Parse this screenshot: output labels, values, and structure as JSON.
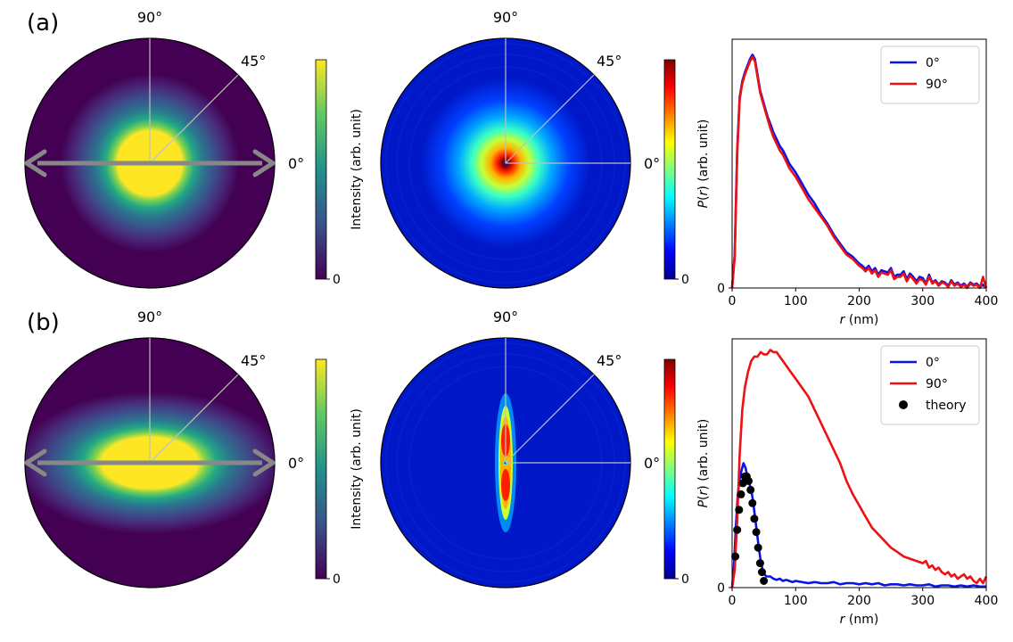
{
  "colors": {
    "blue": "#0a14e6",
    "red": "#ee1111",
    "arrow": "#888888",
    "guide": "#bfbfbf",
    "black": "#000000"
  },
  "rows": [
    {
      "panel_label": "(a)",
      "shape": "isotropic",
      "viridis_map": {
        "angle_labels": [
          "90°",
          "45°",
          "0°"
        ],
        "colorbar": {
          "ylabel": "Intensity (arb. unit)",
          "tick_label": "0"
        }
      },
      "jet_map": {
        "angle_labels": [
          "90°",
          "45°",
          "0°"
        ],
        "colorbar": {
          "tick_label": "0"
        }
      }
    },
    {
      "panel_label": "(b)",
      "shape": "anisotropic",
      "viridis_map": {
        "angle_labels": [
          "90°",
          "45°",
          "0°"
        ],
        "colorbar": {
          "ylabel": "Intensity (arb. unit)",
          "tick_label": "0"
        }
      },
      "jet_map": {
        "angle_labels": [
          "90°",
          "45°",
          "0°"
        ],
        "colorbar": {
          "tick_label": "0"
        }
      }
    }
  ],
  "chart_data": [
    {
      "type": "line",
      "title": "",
      "xlabel_italic": "r",
      "xlabel_rest": " (nm)",
      "ylabel_italic": "P",
      "ylabel_rest": "(",
      "ylabel_italic2": "r",
      "ylabel_rest2": ") (arb. unit)",
      "xlim": [
        0,
        400
      ],
      "ylim": [
        0,
        1.12
      ],
      "x_ticks": [
        0,
        100,
        200,
        300,
        400
      ],
      "x_tick_labels": [
        "0",
        "100",
        "200",
        "300",
        "400"
      ],
      "y_ticks": [
        0
      ],
      "y_tick_labels": [
        "0"
      ],
      "legend_position": "top-right",
      "series": [
        {
          "name": "0°",
          "style": "line",
          "color": "#0a14e6",
          "x": [
            0,
            4,
            8,
            12,
            16,
            20,
            24,
            28,
            32,
            36,
            40,
            44,
            48,
            52,
            56,
            60,
            65,
            70,
            75,
            80,
            85,
            90,
            95,
            100,
            110,
            120,
            130,
            140,
            150,
            160,
            170,
            180,
            190,
            200,
            205,
            210,
            215,
            220,
            225,
            230,
            235,
            240,
            245,
            250,
            255,
            260,
            265,
            270,
            275,
            280,
            285,
            290,
            295,
            300,
            305,
            310,
            315,
            320,
            325,
            330,
            335,
            340,
            345,
            350,
            355,
            360,
            365,
            370,
            375,
            380,
            385,
            390,
            395,
            400
          ],
          "y": [
            0,
            0.15,
            0.62,
            0.86,
            0.93,
            0.97,
            1.0,
            1.03,
            1.05,
            1.03,
            0.96,
            0.89,
            0.85,
            0.81,
            0.77,
            0.74,
            0.7,
            0.67,
            0.64,
            0.62,
            0.59,
            0.56,
            0.54,
            0.52,
            0.47,
            0.42,
            0.38,
            0.33,
            0.29,
            0.24,
            0.2,
            0.16,
            0.14,
            0.11,
            0.1,
            0.085,
            0.1,
            0.075,
            0.09,
            0.06,
            0.08,
            0.075,
            0.07,
            0.09,
            0.05,
            0.06,
            0.06,
            0.075,
            0.04,
            0.065,
            0.05,
            0.03,
            0.05,
            0.045,
            0.02,
            0.06,
            0.025,
            0.035,
            0.015,
            0.03,
            0.025,
            0.01,
            0.035,
            0.015,
            0.025,
            0.01,
            0.02,
            0.005,
            0.025,
            0.015,
            0.02,
            0.005,
            0.015,
            0.0
          ]
        },
        {
          "name": "90°",
          "style": "line",
          "color": "#ee1111",
          "x": [
            0,
            4,
            8,
            12,
            16,
            20,
            24,
            28,
            32,
            36,
            40,
            44,
            48,
            52,
            56,
            60,
            65,
            70,
            75,
            80,
            85,
            90,
            95,
            100,
            110,
            120,
            130,
            140,
            150,
            160,
            170,
            180,
            190,
            200,
            205,
            210,
            215,
            220,
            225,
            230,
            235,
            240,
            245,
            250,
            255,
            260,
            265,
            270,
            275,
            280,
            285,
            290,
            295,
            300,
            305,
            310,
            315,
            320,
            325,
            330,
            335,
            340,
            345,
            350,
            355,
            360,
            365,
            370,
            375,
            380,
            385,
            390,
            395,
            400
          ],
          "y": [
            0,
            0.14,
            0.6,
            0.85,
            0.92,
            0.96,
            0.99,
            1.02,
            1.04,
            1.02,
            0.95,
            0.88,
            0.84,
            0.8,
            0.76,
            0.72,
            0.68,
            0.65,
            0.62,
            0.6,
            0.57,
            0.54,
            0.52,
            0.5,
            0.45,
            0.4,
            0.36,
            0.32,
            0.28,
            0.23,
            0.19,
            0.15,
            0.13,
            0.1,
            0.09,
            0.075,
            0.09,
            0.065,
            0.08,
            0.05,
            0.07,
            0.065,
            0.06,
            0.08,
            0.04,
            0.05,
            0.05,
            0.065,
            0.03,
            0.055,
            0.04,
            0.02,
            0.04,
            0.035,
            0.015,
            0.05,
            0.02,
            0.03,
            0.01,
            0.025,
            0.02,
            0.005,
            0.03,
            0.01,
            0.02,
            0.005,
            0.015,
            0.0,
            0.02,
            0.01,
            0.015,
            0.0,
            0.05,
            0.0
          ]
        }
      ]
    },
    {
      "type": "line",
      "title": "",
      "xlabel_italic": "r",
      "xlabel_rest": " (nm)",
      "ylabel_italic": "P",
      "ylabel_rest": "(",
      "ylabel_italic2": "r",
      "ylabel_rest2": ") (arb. unit)",
      "xlim": [
        0,
        400
      ],
      "ylim": [
        0,
        1.12
      ],
      "x_ticks": [
        0,
        100,
        200,
        300,
        400
      ],
      "x_tick_labels": [
        "0",
        "100",
        "200",
        "300",
        "400"
      ],
      "y_ticks": [
        0
      ],
      "y_tick_labels": [
        "0"
      ],
      "legend_position": "top-right",
      "series": [
        {
          "name": "0°",
          "style": "line",
          "color": "#0a14e6",
          "x": [
            0,
            3,
            6,
            9,
            12,
            15,
            18,
            21,
            24,
            27,
            30,
            33,
            36,
            39,
            42,
            45,
            48,
            51,
            54,
            57,
            60,
            65,
            70,
            75,
            80,
            85,
            90,
            95,
            100,
            110,
            120,
            130,
            140,
            150,
            160,
            170,
            180,
            190,
            200,
            210,
            220,
            230,
            240,
            250,
            260,
            270,
            280,
            290,
            300,
            310,
            320,
            330,
            340,
            350,
            360,
            370,
            380,
            390,
            400
          ],
          "y": [
            0,
            0.1,
            0.28,
            0.42,
            0.49,
            0.53,
            0.56,
            0.54,
            0.5,
            0.47,
            0.44,
            0.39,
            0.32,
            0.25,
            0.18,
            0.12,
            0.08,
            0.06,
            0.05,
            0.05,
            0.05,
            0.04,
            0.035,
            0.04,
            0.03,
            0.035,
            0.03,
            0.025,
            0.03,
            0.025,
            0.02,
            0.025,
            0.02,
            0.02,
            0.025,
            0.015,
            0.02,
            0.02,
            0.015,
            0.02,
            0.015,
            0.02,
            0.01,
            0.015,
            0.015,
            0.01,
            0.015,
            0.01,
            0.01,
            0.015,
            0.005,
            0.01,
            0.01,
            0.005,
            0.01,
            0.005,
            0.01,
            0.005,
            0.005
          ]
        },
        {
          "name": "90°",
          "style": "line",
          "color": "#ee1111",
          "x": [
            0,
            4,
            8,
            12,
            16,
            20,
            25,
            30,
            35,
            40,
            45,
            50,
            55,
            60,
            65,
            70,
            75,
            80,
            85,
            90,
            95,
            100,
            110,
            120,
            130,
            140,
            150,
            160,
            170,
            180,
            190,
            200,
            210,
            220,
            230,
            240,
            250,
            260,
            270,
            280,
            290,
            300,
            305,
            310,
            315,
            320,
            325,
            330,
            335,
            340,
            345,
            350,
            355,
            360,
            365,
            370,
            375,
            380,
            385,
            390,
            395,
            400
          ],
          "y": [
            0,
            0.08,
            0.3,
            0.6,
            0.8,
            0.9,
            0.97,
            1.02,
            1.04,
            1.04,
            1.06,
            1.05,
            1.05,
            1.07,
            1.06,
            1.06,
            1.04,
            1.02,
            1.0,
            0.98,
            0.96,
            0.94,
            0.9,
            0.86,
            0.8,
            0.74,
            0.68,
            0.62,
            0.56,
            0.48,
            0.42,
            0.37,
            0.32,
            0.27,
            0.24,
            0.21,
            0.18,
            0.16,
            0.14,
            0.13,
            0.12,
            0.11,
            0.12,
            0.09,
            0.1,
            0.08,
            0.09,
            0.07,
            0.06,
            0.07,
            0.05,
            0.06,
            0.04,
            0.05,
            0.06,
            0.04,
            0.05,
            0.03,
            0.02,
            0.04,
            0.02,
            0.05
          ]
        },
        {
          "name": "theory",
          "style": "markers",
          "color": "#000000",
          "x": [
            5,
            8,
            11,
            14,
            17,
            20,
            23,
            26,
            29,
            32,
            35,
            38,
            41,
            44,
            47,
            50
          ],
          "y": [
            0.14,
            0.26,
            0.35,
            0.42,
            0.47,
            0.5,
            0.5,
            0.48,
            0.44,
            0.38,
            0.31,
            0.25,
            0.18,
            0.11,
            0.07,
            0.03
          ]
        }
      ]
    }
  ]
}
